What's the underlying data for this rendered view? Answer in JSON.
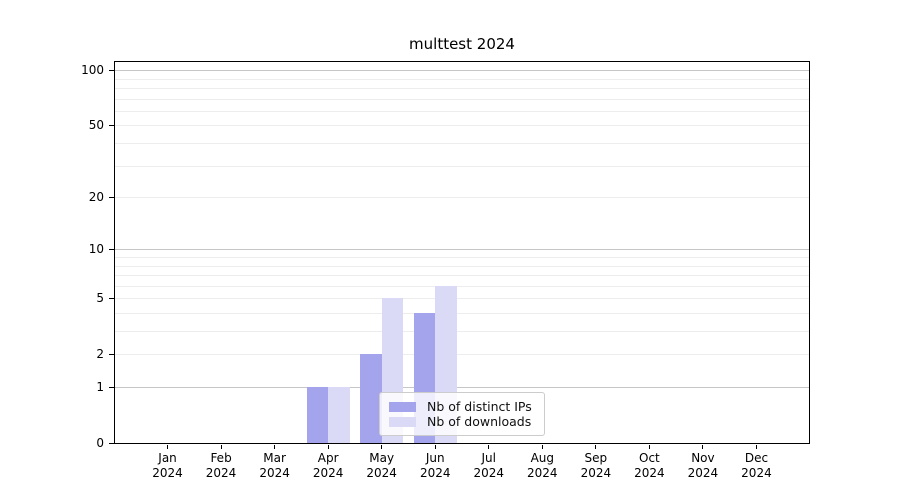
{
  "chart_data": {
    "type": "bar",
    "title": "multtest 2024",
    "categories": [
      "Jan",
      "Feb",
      "Mar",
      "Apr",
      "May",
      "Jun",
      "Jul",
      "Aug",
      "Sep",
      "Oct",
      "Nov",
      "Dec"
    ],
    "x_tick_year": "2024",
    "series": [
      {
        "name": "Nb of distinct IPs",
        "color": "#a4a4ec",
        "values": [
          0,
          0,
          0,
          1,
          2,
          4,
          0,
          0,
          0,
          0,
          0,
          0
        ]
      },
      {
        "name": "Nb of downloads",
        "color": "#dadaf6",
        "values": [
          0,
          0,
          0,
          1,
          5,
          6,
          0,
          0,
          0,
          0,
          0,
          0
        ]
      }
    ],
    "y_axis": {
      "scale": "log10(value+1)",
      "tick_labels": [
        0,
        1,
        2,
        5,
        10,
        20,
        50,
        100
      ],
      "major_gridlines": [
        1,
        10,
        100
      ],
      "minor_gridlines": [
        2,
        3,
        4,
        5,
        6,
        7,
        8,
        9,
        20,
        30,
        40,
        50,
        60,
        70,
        80,
        90
      ],
      "range": [
        0,
        100
      ]
    },
    "legend": {
      "location": "lower center"
    },
    "grid": true
  },
  "colors": {
    "background": "#ffffff",
    "bar_distinct_ips": "#a4a4ec",
    "bar_downloads": "#dadaf6",
    "grid_major": "#c6c6c6",
    "grid_minor": "#ededed",
    "spine": "#000000",
    "text": "#000000",
    "legend_border": "#cccccc"
  }
}
